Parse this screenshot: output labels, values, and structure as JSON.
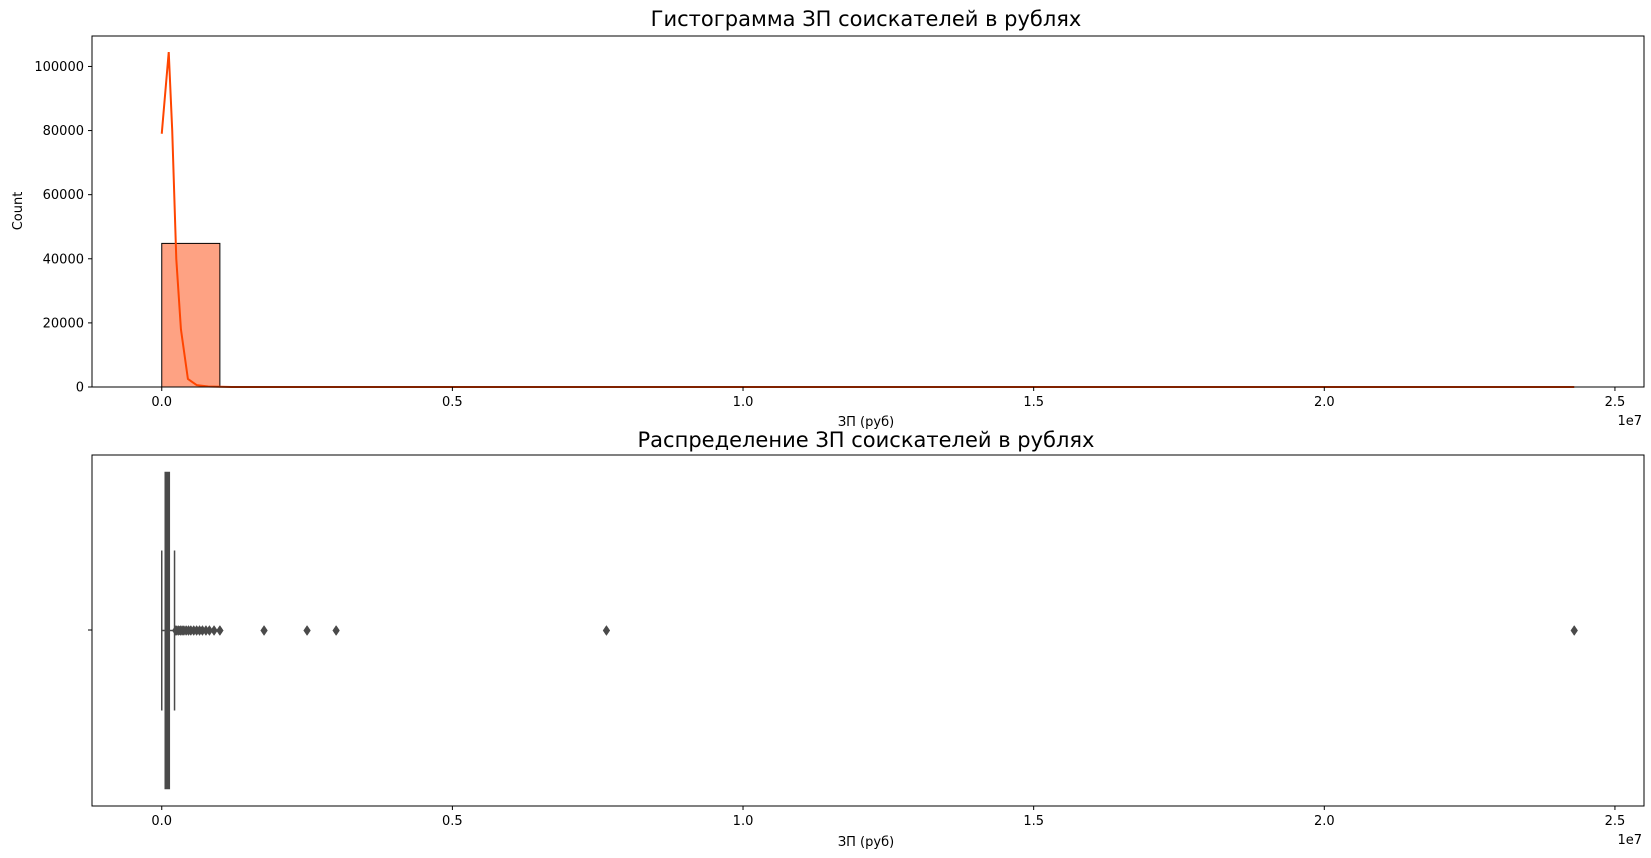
{
  "chart_data": [
    {
      "type": "histogram",
      "title": "Гистограмма ЗП соискателей в рублях",
      "xlabel": "ЗП (руб)",
      "ylabel": "Count",
      "x_offset_label": "1e7",
      "xlim": [
        -1200000,
        25500000
      ],
      "ylim": [
        0,
        109500
      ],
      "x_ticks": [
        0,
        5000000,
        10000000,
        15000000,
        20000000,
        25000000
      ],
      "x_tick_labels": [
        "0.0",
        "0.5",
        "1.0",
        "1.5",
        "2.0",
        "2.5"
      ],
      "y_ticks": [
        0,
        20000,
        40000,
        60000,
        80000,
        100000
      ],
      "y_tick_labels": [
        "0",
        "20000",
        "40000",
        "60000",
        "80000",
        "100000"
      ],
      "bins": [
        {
          "x0": 0,
          "x1": 1000000,
          "count": 44800
        },
        {
          "x0": 1000000,
          "x1": 24300000,
          "count": 0
        }
      ],
      "kde": {
        "x": [
          0,
          120000,
          180000,
          250000,
          330000,
          450000,
          600000,
          800000,
          1200000,
          2000000,
          24300000
        ],
        "y": [
          79000,
          104500,
          80000,
          40000,
          18000,
          2500,
          600,
          150,
          0,
          0,
          0
        ]
      },
      "colors": {
        "bar_fill": "#fea283",
        "bar_edge": "#000000",
        "kde_line": "#ff4500"
      },
      "grid": false
    },
    {
      "type": "boxplot",
      "title": "Распределение ЗП соискателей в рублях",
      "xlabel": "ЗП (руб)",
      "x_offset_label": "1e7",
      "xlim": [
        -1200000,
        25500000
      ],
      "x_ticks": [
        0,
        5000000,
        10000000,
        15000000,
        20000000,
        25000000
      ],
      "x_tick_labels": [
        "0.0",
        "0.5",
        "1.0",
        "1.5",
        "2.0",
        "2.5"
      ],
      "box": {
        "whisker_low": 0,
        "q1": 60000,
        "median": 90000,
        "q3": 130000,
        "whisker_high": 220000
      },
      "outliers": [
        240000,
        260000,
        290000,
        320000,
        350000,
        380000,
        420000,
        460000,
        500000,
        550000,
        600000,
        650000,
        700000,
        760000,
        820000,
        900000,
        1000000,
        1760000,
        2500000,
        3000000,
        7650000,
        24300000
      ],
      "colors": {
        "box_fill": "#4a4a4a",
        "line": "#4a4a4a"
      },
      "grid": false
    }
  ]
}
